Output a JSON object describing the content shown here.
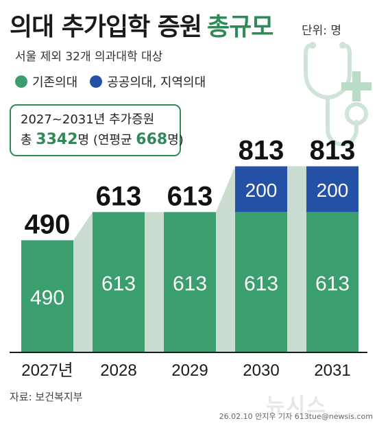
{
  "title_main": "의대 추가입학 증원",
  "title_accent": "총규모",
  "unit": "단위: 명",
  "subtitle": "서울 제외 32개 의과대학 대상",
  "legend": [
    {
      "label": "기존의대",
      "color": "#3a9e6e"
    },
    {
      "label": "공공의대, 지역의대",
      "color": "#2450a6"
    }
  ],
  "infobox": {
    "line1": "2027~2031년 추가증원",
    "total_prefix": "총",
    "total_value": "3342",
    "total_unit": "명",
    "avg_prefix": "(연평균",
    "avg_value": "668",
    "avg_suffix": "명)"
  },
  "source": "자료: 보건복지부",
  "credit": "26.02.10 안지우 기자 613tue@newsis.com",
  "watermark": "뉴시스",
  "chart_data": {
    "type": "bar",
    "stacked": true,
    "categories": [
      "2027년",
      "2028",
      "2029",
      "2030",
      "2031"
    ],
    "series": [
      {
        "name": "기존의대",
        "color": "#3a9e6e",
        "values": [
          490,
          613,
          613,
          613,
          613
        ]
      },
      {
        "name": "공공의대, 지역의대",
        "color": "#2450a6",
        "values": [
          0,
          0,
          0,
          200,
          200
        ]
      }
    ],
    "totals": [
      490,
      613,
      613,
      813,
      813
    ],
    "connector_color": "#c9dccf",
    "axis_color": "#1a1a1a"
  }
}
